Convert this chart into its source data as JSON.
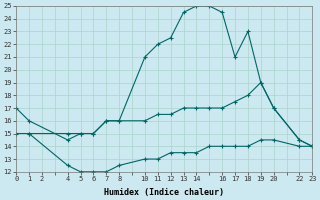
{
  "xlabel": "Humidex (Indice chaleur)",
  "bg_color": "#cce8f0",
  "line_color": "#006666",
  "grid_color": "#aad4cc",
  "xlim": [
    0,
    23
  ],
  "ylim": [
    12,
    25
  ],
  "xticks_major": [
    0,
    1,
    2,
    4,
    5,
    6,
    7,
    8,
    10,
    11,
    12,
    13,
    14,
    16,
    17,
    18,
    19,
    20,
    22,
    23
  ],
  "yticks": [
    12,
    13,
    14,
    15,
    16,
    17,
    18,
    19,
    20,
    21,
    22,
    23,
    24,
    25
  ],
  "line_max_x": [
    0,
    1,
    4,
    5,
    6,
    7,
    8,
    10,
    11,
    12,
    13,
    14,
    15,
    16,
    17,
    18,
    19,
    20,
    22,
    23
  ],
  "line_max_y": [
    17,
    16,
    14.5,
    15,
    15,
    16,
    16,
    21,
    22,
    22.5,
    24.5,
    25,
    25,
    24.5,
    21,
    23,
    19,
    17,
    14.5,
    14
  ],
  "line_mean_x": [
    0,
    1,
    4,
    5,
    6,
    7,
    8,
    10,
    11,
    12,
    13,
    14,
    15,
    16,
    17,
    18,
    19,
    20,
    22,
    23
  ],
  "line_mean_y": [
    15,
    15,
    15,
    15,
    15,
    16,
    16,
    16,
    16.5,
    16.5,
    17,
    17,
    17,
    17,
    17.5,
    18,
    19,
    17,
    14.5,
    14
  ],
  "line_min_x": [
    1,
    4,
    5,
    6,
    7,
    8,
    10,
    11,
    12,
    13,
    14,
    15,
    16,
    17,
    18,
    19,
    20,
    22,
    23
  ],
  "line_min_y": [
    15,
    12.5,
    12,
    12,
    12,
    12.5,
    13,
    13,
    13.5,
    13.5,
    13.5,
    14,
    14,
    14,
    14,
    14.5,
    14.5,
    14,
    14
  ]
}
